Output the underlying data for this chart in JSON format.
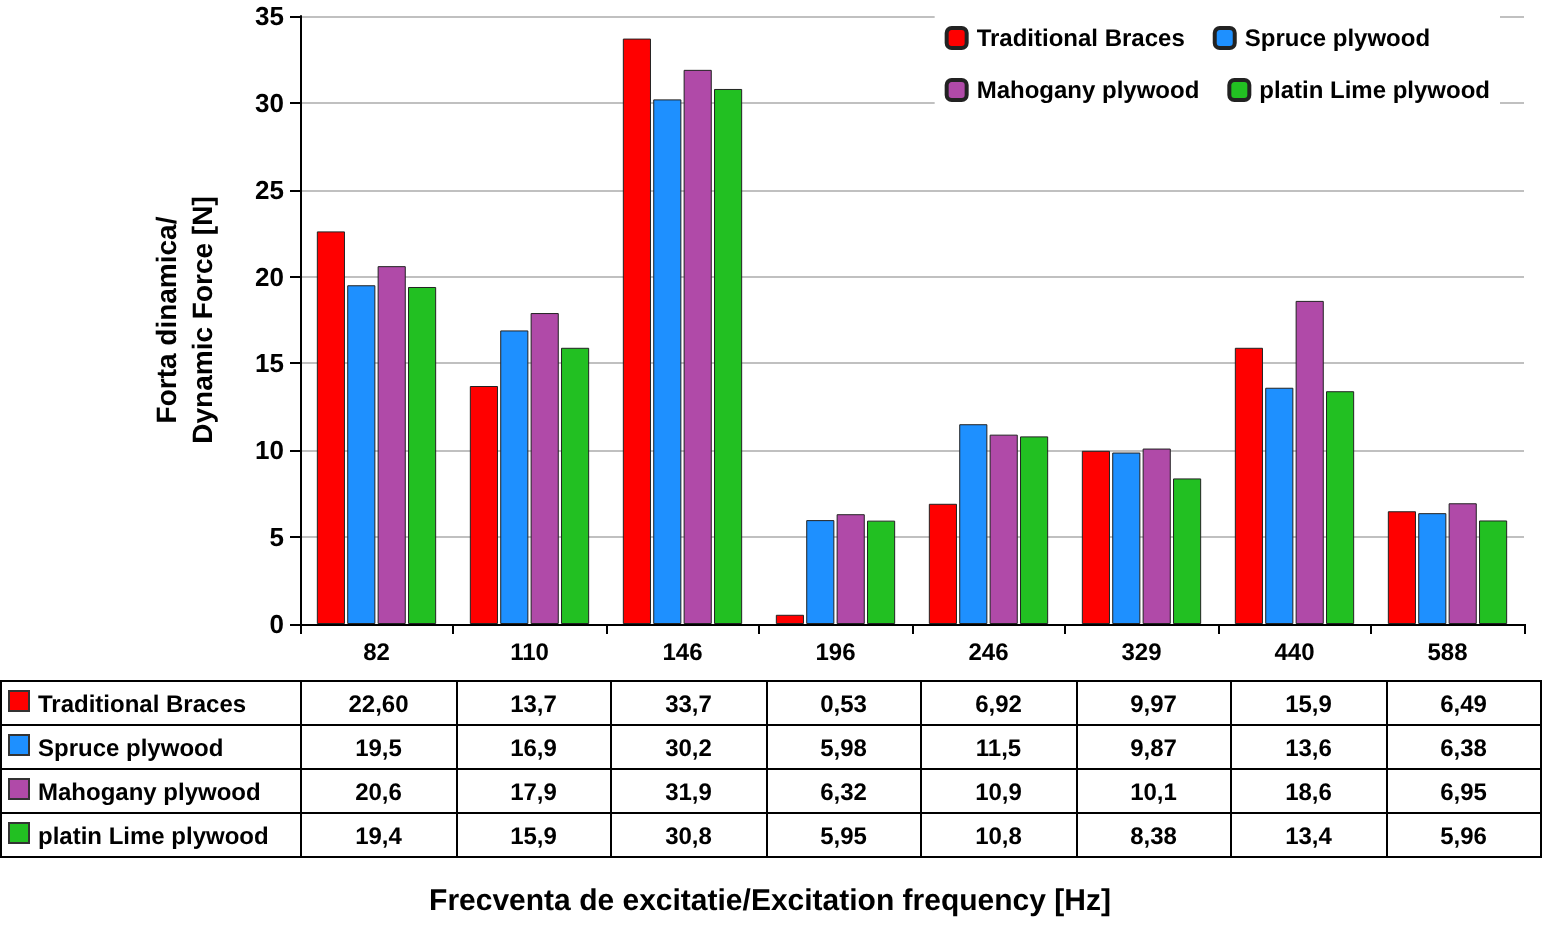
{
  "chart_data": {
    "type": "bar",
    "ylabel": "Forta dinamica/\nDynamic Force [N]",
    "annotations": [
      "Frecventa de excitatie/Excitation frequency [Hz]"
    ],
    "categories": [
      "82",
      "110",
      "146",
      "196",
      "246",
      "329",
      "440",
      "588"
    ],
    "series": [
      {
        "name": "Traditional Braces",
        "color": "#ff0000",
        "values": [
          22.6,
          13.7,
          33.7,
          0.53,
          6.92,
          9.97,
          15.9,
          6.49
        ],
        "value_labels": [
          "22,60",
          "13,7",
          "33,7",
          "0,53",
          "6,92",
          "9,97",
          "15,9",
          "6,49"
        ]
      },
      {
        "name": "Spruce plywood",
        "color": "#1e90ff",
        "values": [
          19.5,
          16.9,
          30.2,
          5.98,
          11.5,
          9.87,
          13.6,
          6.38
        ],
        "value_labels": [
          "19,5",
          "16,9",
          "30,2",
          "5,98",
          "11,5",
          "9,87",
          "13,6",
          "6,38"
        ]
      },
      {
        "name": "Mahogany plywood",
        "color": "#b04aa8",
        "values": [
          20.6,
          17.9,
          31.9,
          6.32,
          10.9,
          10.1,
          18.6,
          6.95
        ],
        "value_labels": [
          "20,6",
          "17,9",
          "31,9",
          "6,32",
          "10,9",
          "10,1",
          "18,6",
          "6,95"
        ]
      },
      {
        "name": "platin Lime plywood",
        "color": "#22c022",
        "values": [
          19.4,
          15.9,
          30.8,
          5.95,
          10.8,
          8.38,
          13.4,
          5.96
        ],
        "value_labels": [
          "19,4",
          "15,9",
          "30,8",
          "5,95",
          "10,8",
          "8,38",
          "13,4",
          "5,96"
        ]
      }
    ],
    "ylim": [
      0,
      35
    ],
    "yticks": [
      0,
      5,
      10,
      15,
      20,
      25,
      30,
      35
    ],
    "grid": "y",
    "legend": "top right"
  }
}
